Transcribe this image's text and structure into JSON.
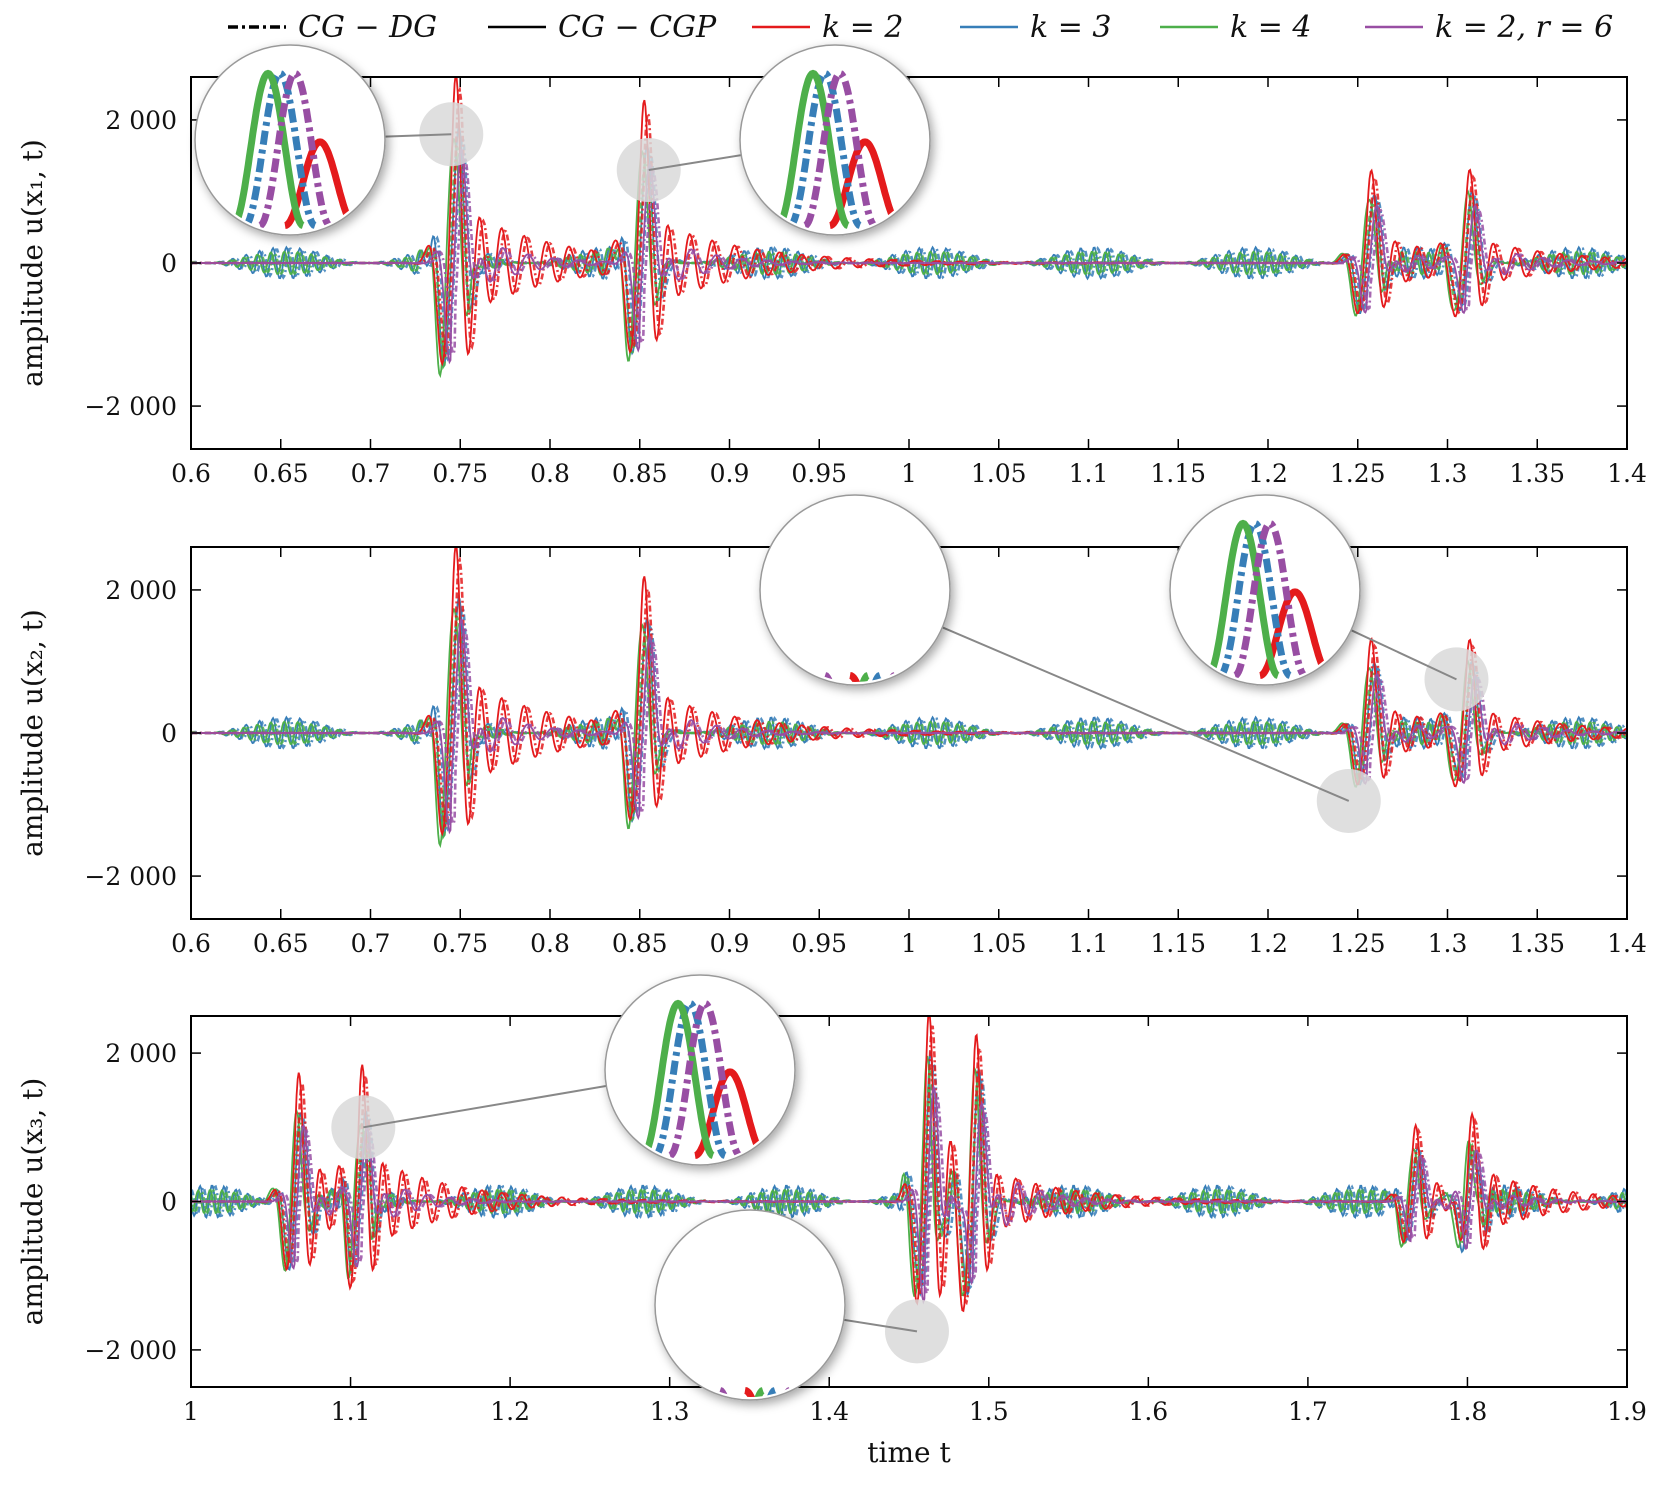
{
  "legend": [
    {
      "label": "CG − DG",
      "color": "#000000",
      "style": "dashdot"
    },
    {
      "label": "CG − CGP",
      "color": "#000000",
      "style": "solid"
    },
    {
      "label": "k = 2",
      "color": "#e41a1c",
      "style": "solid"
    },
    {
      "label": "k = 3",
      "color": "#377eb8",
      "style": "solid"
    },
    {
      "label": "k = 4",
      "color": "#4daf4a",
      "style": "solid"
    },
    {
      "label": "k = 2, r = 6",
      "color": "#984ea3",
      "style": "solid"
    }
  ],
  "colors": {
    "k2": "#e41a1c",
    "k3": "#377eb8",
    "k4": "#4daf4a",
    "k2r6": "#984ea3",
    "highlight": "#d9d9d9"
  },
  "chart_data": [
    {
      "type": "line",
      "ylabel": "amplitude u(x₁, t)",
      "xlabel": "",
      "xlim": [
        0.6,
        1.4
      ],
      "ylim": [
        -2600,
        2600
      ],
      "xticks": [
        0.6,
        0.65,
        0.7,
        0.75,
        0.8,
        0.85,
        0.9,
        0.95,
        1,
        1.05,
        1.1,
        1.15,
        1.2,
        1.25,
        1.3,
        1.35,
        1.4
      ],
      "xtick_labels": [
        "0.6",
        "0.65",
        "0.7",
        "0.75",
        "0.8",
        "0.85",
        "0.9",
        "0.95",
        "1",
        "1.05",
        "1.1",
        "1.15",
        "1.2",
        "1.25",
        "1.3",
        "1.35",
        "1.4"
      ],
      "yticks": [
        -2000,
        0,
        2000
      ],
      "ytick_labels": [
        "−2 000",
        "0",
        "2 000"
      ],
      "pulses": [
        {
          "t": 0.745,
          "peak": 1900,
          "trough": -2100
        },
        {
          "t": 0.85,
          "peak": 1750,
          "trough": -1750
        },
        {
          "t": 1.255,
          "peak": 900,
          "trough": -1100
        },
        {
          "t": 1.31,
          "peak": 1050,
          "trough": -1000
        }
      ],
      "zoom_spots": [
        {
          "t": 0.745,
          "y": 1800,
          "label": "peak"
        },
        {
          "t": 0.855,
          "y": 1300,
          "label": "peak"
        }
      ]
    },
    {
      "type": "line",
      "ylabel": "amplitude u(x₂, t)",
      "xlabel": "",
      "xlim": [
        0.6,
        1.4
      ],
      "ylim": [
        -2600,
        2600
      ],
      "xticks": [
        0.6,
        0.65,
        0.7,
        0.75,
        0.8,
        0.85,
        0.9,
        0.95,
        1,
        1.05,
        1.1,
        1.15,
        1.2,
        1.25,
        1.3,
        1.35,
        1.4
      ],
      "xtick_labels": [
        "0.6",
        "0.65",
        "0.7",
        "0.75",
        "0.8",
        "0.85",
        "0.9",
        "0.95",
        "1",
        "1.05",
        "1.1",
        "1.15",
        "1.2",
        "1.25",
        "1.3",
        "1.35",
        "1.4"
      ],
      "yticks": [
        -2000,
        0,
        2000
      ],
      "ytick_labels": [
        "−2 000",
        "0",
        "2 000"
      ],
      "pulses": [
        {
          "t": 0.745,
          "peak": 1900,
          "trough": -2100
        },
        {
          "t": 0.85,
          "peak": 1650,
          "trough": -1750
        },
        {
          "t": 1.255,
          "peak": 900,
          "trough": -1150
        },
        {
          "t": 1.31,
          "peak": 1050,
          "trough": -1000
        }
      ],
      "zoom_spots": [
        {
          "t": 1.245,
          "y": -950,
          "label": "trough"
        },
        {
          "t": 1.305,
          "y": 750,
          "label": "peak"
        }
      ]
    },
    {
      "type": "line",
      "ylabel": "amplitude u(x₃, t)",
      "xlabel": "time t",
      "xlim": [
        1.0,
        1.9
      ],
      "ylim": [
        -2500,
        2500
      ],
      "xticks": [
        1.0,
        1.1,
        1.2,
        1.3,
        1.4,
        1.5,
        1.6,
        1.7,
        1.8,
        1.9
      ],
      "xtick_labels": [
        "1",
        "1.1",
        "1.2",
        "1.3",
        "1.4",
        "1.5",
        "1.6",
        "1.7",
        "1.8",
        "1.9"
      ],
      "yticks": [
        -2000,
        0,
        2000
      ],
      "ytick_labels": [
        "−2 000",
        "0",
        "2 000"
      ],
      "pulses": [
        {
          "t": 1.065,
          "peak": 1300,
          "trough": -1300
        },
        {
          "t": 1.105,
          "peak": 1300,
          "trough": -1200
        },
        {
          "t": 1.46,
          "peak": 1900,
          "trough": -2000
        },
        {
          "t": 1.49,
          "peak": 1850,
          "trough": -1900
        },
        {
          "t": 1.765,
          "peak": 750,
          "trough": -800
        },
        {
          "t": 1.8,
          "peak": 900,
          "trough": -800
        }
      ],
      "zoom_spots": [
        {
          "t": 1.108,
          "y": 1000,
          "label": "peak"
        },
        {
          "t": 1.455,
          "y": -1750,
          "label": "trough"
        }
      ]
    }
  ]
}
